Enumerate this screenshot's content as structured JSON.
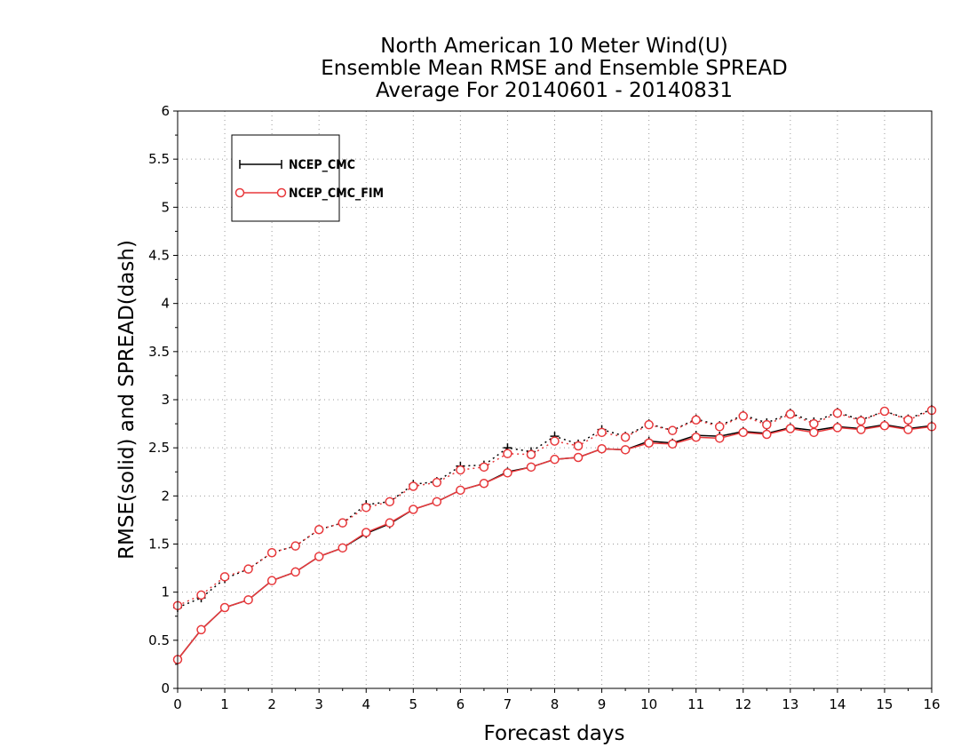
{
  "chart_data": {
    "type": "line",
    "title_lines": [
      "North American 10 Meter Wind(U)",
      "Ensemble Mean RMSE and Ensemble SPREAD",
      "Average For 20140601 - 20140831"
    ],
    "xlabel": "Forecast days",
    "ylabel": "RMSE(solid) and SPREAD(dash)",
    "xlim": [
      0,
      16
    ],
    "ylim": [
      0,
      6
    ],
    "xticks": [
      0,
      1,
      2,
      3,
      4,
      5,
      6,
      7,
      8,
      9,
      10,
      11,
      12,
      13,
      14,
      15,
      16
    ],
    "yticks": [
      0,
      0.5,
      1,
      1.5,
      2,
      2.5,
      3,
      3.5,
      4,
      4.5,
      5,
      5.5,
      6
    ],
    "grid": true,
    "legend_position": "top-left",
    "x": [
      0,
      0.5,
      1,
      1.5,
      2,
      2.5,
      3,
      3.5,
      4,
      4.5,
      5,
      5.5,
      6,
      6.5,
      7,
      7.5,
      8,
      8.5,
      9,
      9.5,
      10,
      10.5,
      11,
      11.5,
      12,
      12.5,
      13,
      13.5,
      14,
      14.5,
      15,
      15.5,
      16
    ],
    "series": [
      {
        "name": "NCEP_CMC",
        "color": "#000000",
        "marker": "plus",
        "rmse": [
          0.3,
          0.61,
          0.84,
          0.92,
          1.12,
          1.21,
          1.37,
          1.46,
          1.61,
          1.71,
          1.86,
          1.94,
          2.06,
          2.13,
          2.25,
          2.3,
          2.38,
          2.4,
          2.49,
          2.48,
          2.57,
          2.55,
          2.63,
          2.62,
          2.67,
          2.65,
          2.71,
          2.68,
          2.72,
          2.7,
          2.74,
          2.7,
          2.73
        ],
        "spread": [
          0.84,
          0.94,
          1.14,
          1.24,
          1.41,
          1.48,
          1.65,
          1.72,
          1.91,
          1.94,
          2.12,
          2.15,
          2.31,
          2.32,
          2.5,
          2.46,
          2.62,
          2.54,
          2.69,
          2.62,
          2.75,
          2.68,
          2.8,
          2.73,
          2.84,
          2.76,
          2.86,
          2.77,
          2.87,
          2.79,
          2.88,
          2.8,
          2.9
        ]
      },
      {
        "name": "NCEP_CMC_FIM",
        "color": "#e8393c",
        "marker": "circle",
        "rmse": [
          0.3,
          0.61,
          0.84,
          0.92,
          1.12,
          1.21,
          1.37,
          1.46,
          1.62,
          1.72,
          1.86,
          1.94,
          2.06,
          2.13,
          2.24,
          2.3,
          2.38,
          2.4,
          2.49,
          2.48,
          2.55,
          2.54,
          2.61,
          2.6,
          2.66,
          2.64,
          2.7,
          2.66,
          2.71,
          2.69,
          2.73,
          2.69,
          2.72
        ],
        "spread": [
          0.86,
          0.97,
          1.16,
          1.24,
          1.41,
          1.48,
          1.65,
          1.72,
          1.88,
          1.94,
          2.1,
          2.14,
          2.27,
          2.3,
          2.44,
          2.43,
          2.57,
          2.52,
          2.66,
          2.61,
          2.74,
          2.68,
          2.79,
          2.72,
          2.83,
          2.74,
          2.85,
          2.75,
          2.86,
          2.78,
          2.88,
          2.79,
          2.89
        ]
      }
    ]
  }
}
